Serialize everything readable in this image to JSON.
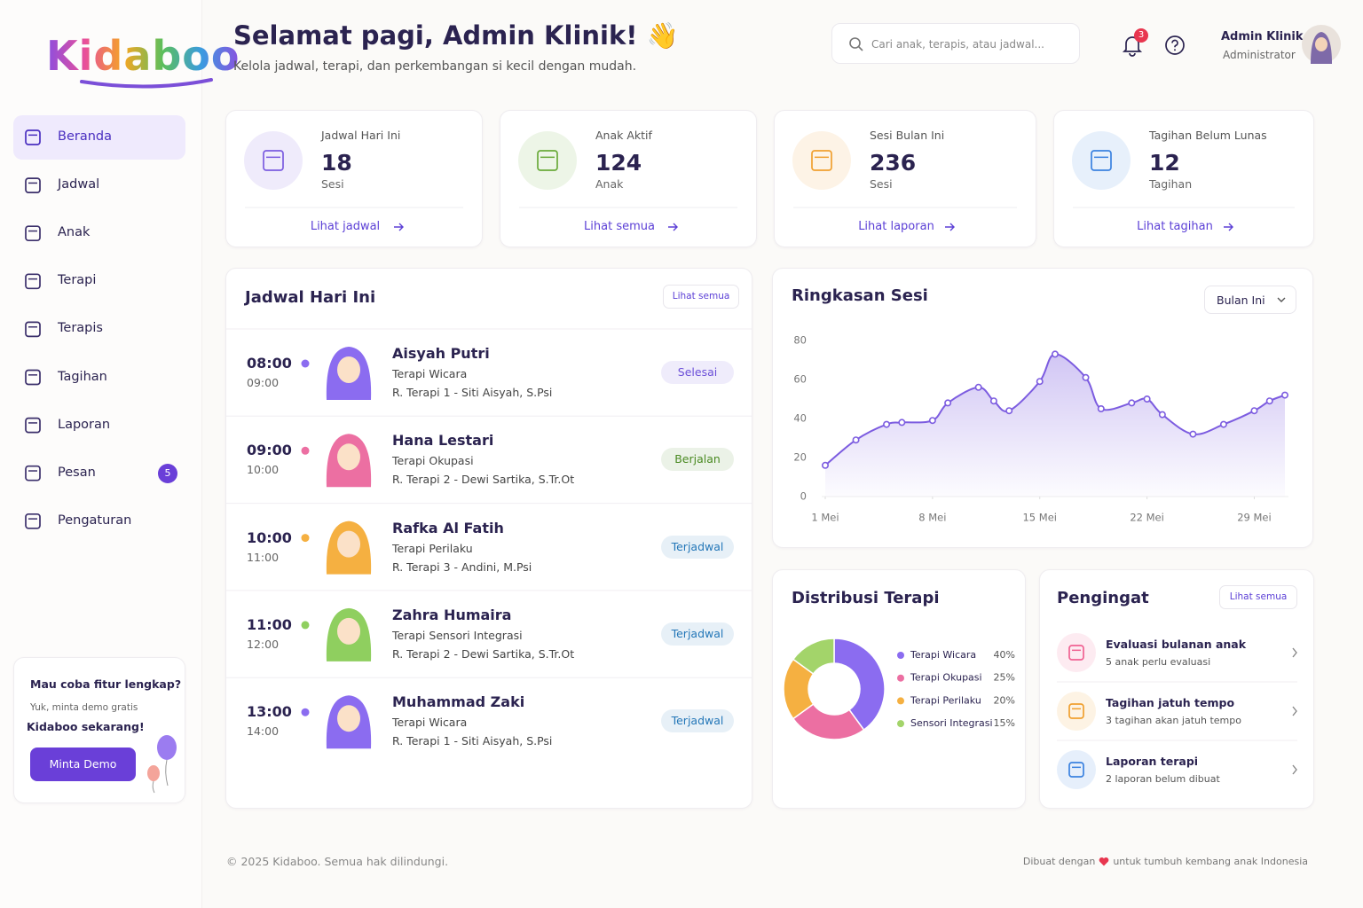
{
  "brand": {
    "name": "Kidaboo"
  },
  "header": {
    "title": "Selamat pagi, Admin Klinik! 👋",
    "subtitle": "Kelola jadwal, terapi, dan perkembangan si kecil dengan mudah.",
    "search_placeholder": "Cari anak, terapis, atau jadwal...",
    "notifications": 3,
    "user_name": "Admin Klinik",
    "user_role": "Administrator"
  },
  "nav": [
    {
      "label": "Beranda",
      "active": true
    },
    {
      "label": "Jadwal"
    },
    {
      "label": "Anak"
    },
    {
      "label": "Terapi"
    },
    {
      "label": "Terapis"
    },
    {
      "label": "Tagihan"
    },
    {
      "label": "Laporan"
    },
    {
      "label": "Pesan",
      "badge": 5
    },
    {
      "label": "Pengaturan"
    }
  ],
  "promo": {
    "title": "Mau coba fitur lengkap?",
    "text": "Yuk, minta demo gratis",
    "highlight": "Kidaboo sekarang!",
    "button": "Minta Demo"
  },
  "stats": [
    {
      "label": "Jadwal Hari Ini",
      "value": 18,
      "unit": "Sesi",
      "link": "Lihat jadwal",
      "color": "#7b5ce0"
    },
    {
      "label": "Anak Aktif",
      "value": 124,
      "unit": "Anak",
      "link": "Lihat semua",
      "color": "#6aaa3a"
    },
    {
      "label": "Sesi Bulan Ini",
      "value": 236,
      "unit": "Sesi",
      "link": "Lihat laporan",
      "color": "#f0a030"
    },
    {
      "label": "Tagihan Belum Lunas",
      "value": 12,
      "unit": "Tagihan",
      "link": "Lihat tagihan",
      "color": "#3b82e0"
    }
  ],
  "schedule": {
    "title": "Jadwal Hari Ini",
    "link": "Lihat semua",
    "items": [
      {
        "start": "08:00",
        "end": "09:00",
        "name": "Aisyah Putri",
        "therapy": "Terapi Wicara",
        "room": "R. Terapi 1 - Siti Aisyah, S.Psi",
        "status": "Selesai",
        "color": "#8b6cf0",
        "status_color": "#6b4fd8"
      },
      {
        "start": "09:00",
        "end": "10:00",
        "name": "Hana Lestari",
        "therapy": "Terapi Okupasi",
        "room": "R. Terapi 2 - Dewi Sartika, S.Tr.Ot",
        "status": "Berjalan",
        "color": "#ec6fa2",
        "status_color": "#4a8a22"
      },
      {
        "start": "10:00",
        "end": "11:00",
        "name": "Rafka Al Fatih",
        "therapy": "Terapi Perilaku",
        "room": "R. Terapi 3 - Andini, M.Psi",
        "status": "Terjadwal",
        "color": "#f5b041",
        "status_color": "#2477b8"
      },
      {
        "start": "11:00",
        "end": "12:00",
        "name": "Zahra Humaira",
        "therapy": "Terapi Sensori Integrasi",
        "room": "R. Terapi 2 - Dewi Sartika, S.Tr.Ot",
        "status": "Terjadwal",
        "color": "#8fcf5f",
        "status_color": "#2477b8"
      },
      {
        "start": "13:00",
        "end": "14:00",
        "name": "Muhammad Zaki",
        "therapy": "Terapi Wicara",
        "room": "R. Terapi 1 - Siti Aisyah, S.Psi",
        "status": "Terjadwal",
        "color": "#8b6cf0",
        "status_color": "#2477b8"
      }
    ]
  },
  "session_filter": "Bulan Ini",
  "chart_data": [
    {
      "type": "line",
      "title": "Ringkasan Sesi",
      "x": [
        1,
        3,
        5,
        6,
        8,
        9,
        11,
        12,
        13,
        15,
        16,
        18,
        19,
        21,
        22,
        23,
        25,
        27,
        29,
        30,
        31
      ],
      "series": [
        {
          "name": "Sesi",
          "color": "#7c5ce0",
          "values": [
            16,
            29,
            37,
            38,
            39,
            48,
            56,
            49,
            44,
            59,
            73,
            61,
            45,
            48,
            50,
            42,
            32,
            37,
            44,
            49,
            52
          ]
        }
      ],
      "xlim": [
        1,
        31
      ],
      "xticks": [
        {
          "value": 1,
          "label": "1 Mei"
        },
        {
          "value": 8,
          "label": "8 Mei"
        },
        {
          "value": 15,
          "label": "15 Mei"
        },
        {
          "value": 22,
          "label": "22 Mei"
        },
        {
          "value": 29,
          "label": "29 Mei"
        }
      ],
      "ylim": [
        0,
        80
      ],
      "yticks": [
        0,
        20,
        40,
        60,
        80
      ],
      "grid": false
    },
    {
      "type": "pie",
      "title": "Distribusi Terapi",
      "categories": [
        "Terapi Wicara",
        "Terapi Okupasi",
        "Terapi Perilaku",
        "Sensori Integrasi"
      ],
      "values": [
        40,
        25,
        20,
        15
      ],
      "value_labels": [
        "40%",
        "25%",
        "20%",
        "15%"
      ],
      "colors": [
        "#8b6cf0",
        "#ec6fa2",
        "#f5b041",
        "#a3d46a"
      ],
      "donut": true
    }
  ],
  "reminders": {
    "title": "Pengingat",
    "link": "Lihat semua",
    "items": [
      {
        "title": "Evaluasi bulanan anak",
        "text": "5 anak perlu evaluasi",
        "color": "#f06292"
      },
      {
        "title": "Tagihan jatuh tempo",
        "text": "3 tagihan akan jatuh tempo",
        "color": "#f0a030"
      },
      {
        "title": "Laporan terapi",
        "text": "2 laporan belum dibuat",
        "color": "#3b82e0"
      }
    ]
  },
  "footer": {
    "copyright": "© 2025 Kidaboo. Semua hak dilindungi.",
    "made_with": "Dibuat dengan",
    "made_for": "untuk tumbuh kembang anak Indonesia"
  }
}
